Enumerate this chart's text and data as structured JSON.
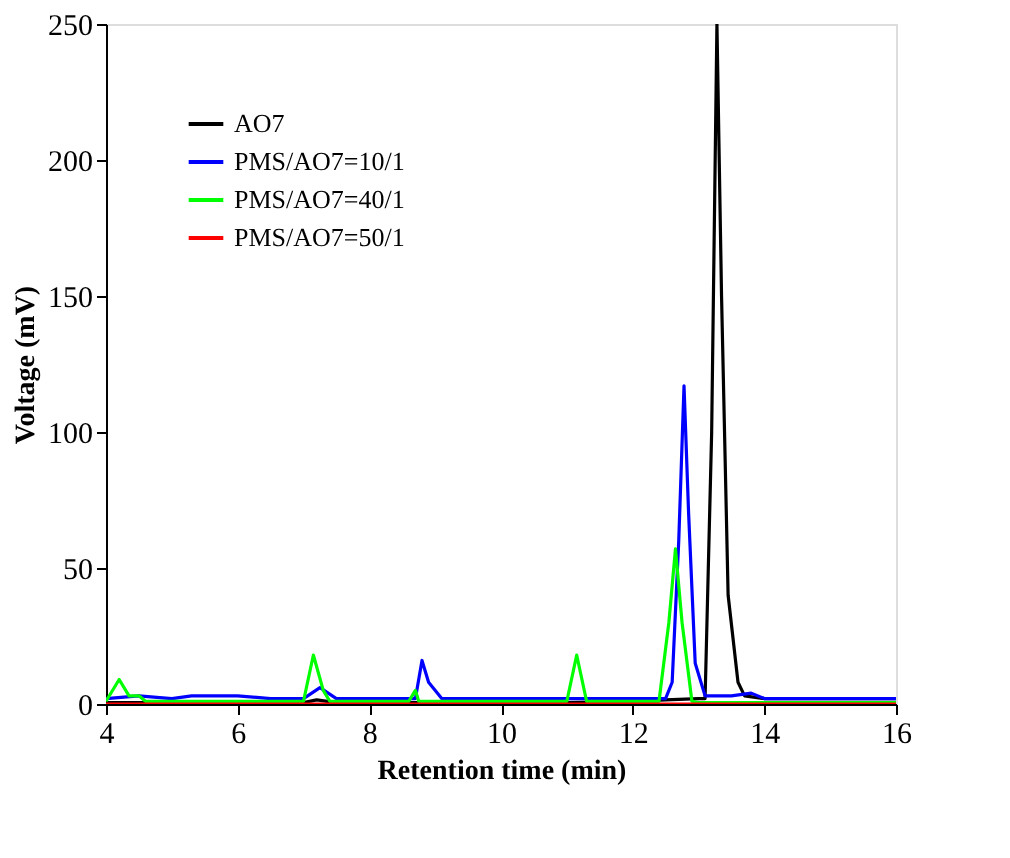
{
  "chart_data": {
    "type": "line",
    "xlabel": "Retention time (min)",
    "ylabel": "Voltage (mV)",
    "xlim": [
      4,
      16
    ],
    "xticks": [
      4,
      6,
      8,
      10,
      12,
      14,
      16
    ],
    "ylim": [
      0,
      250
    ],
    "yticks": [
      0,
      50,
      100,
      150,
      200,
      250
    ],
    "grid": false,
    "legend": "top left",
    "marker": "none",
    "line_style": "solid",
    "series": [
      {
        "name": "AO7",
        "color": "#000000",
        "x": [
          4,
          5,
          6,
          7,
          7.2,
          7.5,
          8,
          9,
          10,
          11,
          12,
          12.5,
          13,
          13.1,
          13.2,
          13.28,
          13.35,
          13.45,
          13.6,
          13.7,
          14,
          15,
          16
        ],
        "values": [
          0.5,
          0.5,
          0.5,
          0.5,
          1.5,
          0.5,
          0.5,
          0.5,
          0.5,
          0.5,
          1,
          1.5,
          2,
          2,
          100,
          250,
          150,
          40,
          8,
          3,
          2,
          2,
          2
        ]
      },
      {
        "name": "PMS/AO7=10/1",
        "color": "#0000ff",
        "x": [
          4,
          4.5,
          5,
          5.3,
          5.5,
          6,
          6.5,
          7,
          7.25,
          7.5,
          8,
          8.7,
          8.8,
          8.9,
          9.1,
          11,
          12.5,
          12.6,
          12.7,
          12.78,
          12.85,
          12.95,
          13.1,
          13.5,
          13.8,
          14,
          16
        ],
        "values": [
          2,
          3,
          2,
          3,
          3,
          3,
          2,
          2,
          6,
          2,
          2,
          2,
          16,
          8,
          2,
          2,
          2,
          8,
          60,
          117,
          70,
          15,
          3,
          3,
          4,
          2,
          2
        ]
      },
      {
        "name": "PMS/AO7=40/1",
        "color": "#00ff00",
        "x": [
          4,
          4.2,
          4.35,
          4.5,
          4.6,
          7,
          7.15,
          7.3,
          7.4,
          8.6,
          8.7,
          8.75,
          11,
          11.15,
          11.3,
          12.4,
          12.55,
          12.65,
          12.75,
          12.9,
          13,
          16
        ],
        "values": [
          1,
          9,
          3,
          3,
          1,
          1,
          18,
          5,
          1,
          1,
          5,
          1,
          1,
          18,
          1,
          1,
          30,
          57,
          30,
          1,
          0.5,
          0.5
        ]
      },
      {
        "name": "PMS/AO7=50/1",
        "color": "#ff0000",
        "x": [
          4,
          16
        ],
        "values": [
          0,
          0
        ]
      }
    ]
  }
}
